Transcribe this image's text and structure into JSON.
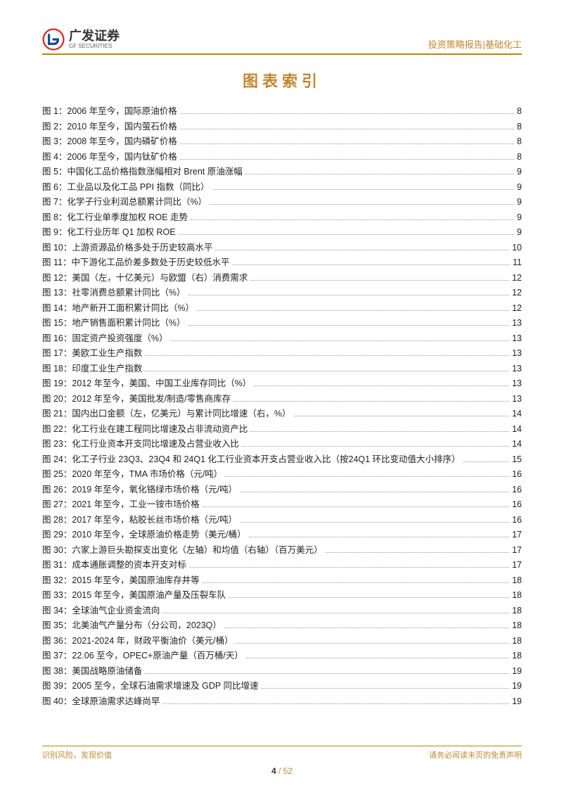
{
  "header": {
    "logo_cn": "广发证券",
    "logo_en": "GF SECURITIES",
    "right": "投资策略报告|基础化工"
  },
  "title": "图表索引",
  "toc": [
    {
      "label": "图 1：2006 年至今，国际原油价格",
      "page": "8"
    },
    {
      "label": "图 2：2010 年至今，国内萤石价格",
      "page": "8"
    },
    {
      "label": "图 3：2008 年至今，国内磷矿价格",
      "page": "8"
    },
    {
      "label": "图 4：2006 年至今，国内钛矿价格",
      "page": "8"
    },
    {
      "label": "图 5：中国化工品价格指数涨幅相对 Brent 原油涨幅",
      "page": "9"
    },
    {
      "label": "图 6：工业品以及化工品 PPI 指数（同比）",
      "page": "9"
    },
    {
      "label": "图 7：化学子行业利润总额累计同比（%）",
      "page": "9"
    },
    {
      "label": "图 8：化工行业单季度加权 ROE 走势",
      "page": "9"
    },
    {
      "label": "图 9：化工行业历年 Q1 加权 ROE",
      "page": "9"
    },
    {
      "label": "图 10：上游资源品价格多处于历史较高水平",
      "page": "10"
    },
    {
      "label": "图 11：中下游化工品价差多数处于历史较低水平",
      "page": "11"
    },
    {
      "label": "图 12：美国（左，十亿美元）与欧盟（右）消费需求",
      "page": "12"
    },
    {
      "label": "图 13：社零消费总额累计同比（%）",
      "page": "12"
    },
    {
      "label": "图 14：地产新开工面积累计同比（%）",
      "page": "12"
    },
    {
      "label": "图 15：地产销售面积累计同比（%）",
      "page": "13"
    },
    {
      "label": "图 16：固定资产投资强度（%）",
      "page": "13"
    },
    {
      "label": "图 17：美欧工业生产指数",
      "page": "13"
    },
    {
      "label": "图 18：印度工业生产指数",
      "page": "13"
    },
    {
      "label": "图 19：2012 年至今，美国、中国工业库存同比（%）",
      "page": "13"
    },
    {
      "label": "图 20：2012 年至今，美国批发/制造/零售商库存",
      "page": "13"
    },
    {
      "label": "图 21：国内出口金额（左，亿美元）与累计同比增速（右，%）",
      "page": "14"
    },
    {
      "label": "图 22：化工行业在建工程同比增速及占非流动资产比",
      "page": "14"
    },
    {
      "label": "图 23：化工行业资本开支同比增速及占营业收入比",
      "page": "14"
    },
    {
      "label": "图 24：化工子行业 23Q3、23Q4 和 24Q1 化工行业资本开支占营业收入比（按24Q1 环比变动值大小排序）",
      "page": "15"
    },
    {
      "label": "图 25：2020 年至今，TMA 市场价格（元/吨）",
      "page": "16"
    },
    {
      "label": "图 26：2019 年至今，氧化铬绿市场价格（元/吨）",
      "page": "16"
    },
    {
      "label": "图 27：2021 年至今，工业一铵市场价格",
      "page": "16"
    },
    {
      "label": "图 28：2017 年至今，粘胶长丝市场价格（元/吨）",
      "page": "16"
    },
    {
      "label": "图 29：2010 年至今，全球原油价格走势（美元/桶）",
      "page": "17"
    },
    {
      "label": "图 30：六家上游巨头勘探支出变化（左轴）和均值（右轴）（百万美元）",
      "page": "17"
    },
    {
      "label": "图 31：成本通胀调整的资本开支对标",
      "page": "17"
    },
    {
      "label": "图 32：2015 年至今，美国原油库存井等",
      "page": "18"
    },
    {
      "label": "图 33：2015 年至今，美国原油产量及压裂车队",
      "page": "18"
    },
    {
      "label": "图 34：全球油气企业资金流向",
      "page": "18"
    },
    {
      "label": "图 35：北美油气产量分布（分公司，2023Q）",
      "page": "18"
    },
    {
      "label": "图 36：2021-2024 年，财政平衡油价（美元/桶）",
      "page": "18"
    },
    {
      "label": "图 37：22.06 至今，OPEC+原油产量（百万桶/天）",
      "page": "18"
    },
    {
      "label": "图 38：美国战略原油储备",
      "page": "19"
    },
    {
      "label": "图 39：2005 至今，全球石油需求增速及 GDP 同比增速",
      "page": "19"
    },
    {
      "label": "图 40：全球原油需求达峰尚早",
      "page": "19"
    }
  ],
  "footer": {
    "left": "识别风险，发现价值",
    "right": "请务必阅读末页的免责声明",
    "page_current": "4",
    "page_sep": " / ",
    "page_total": "52"
  },
  "colors": {
    "accent": "#c08830",
    "border": "#b8860b",
    "text": "#222222",
    "logo_red": "#d4342a",
    "logo_blue": "#1a4a8c"
  }
}
